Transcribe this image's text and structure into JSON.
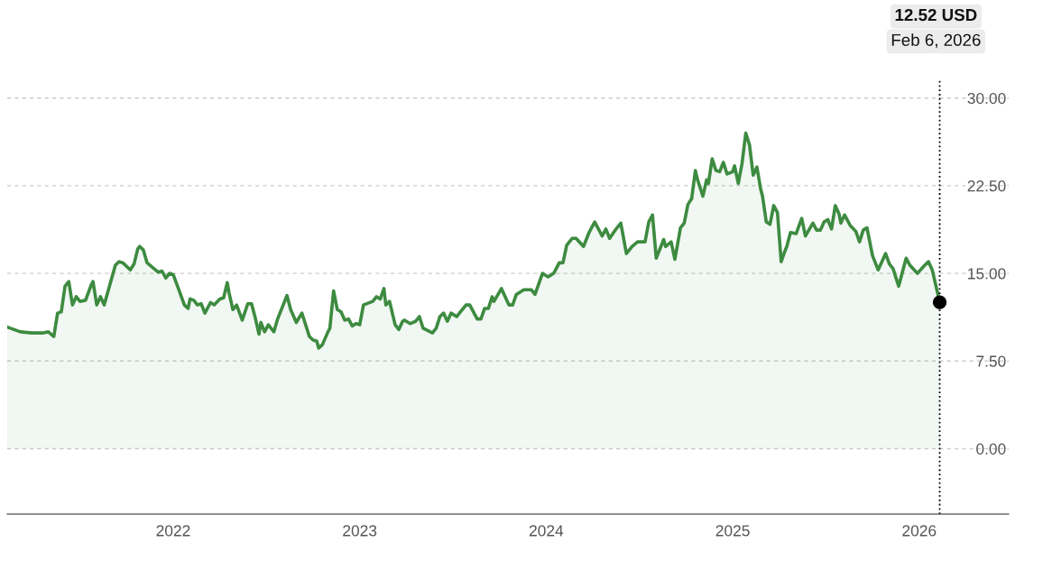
{
  "chart_data": {
    "type": "area",
    "x": [
      2021.11,
      2021.18,
      2021.24,
      2021.3,
      2021.33,
      2021.36,
      2021.38,
      2021.4,
      2021.42,
      2021.44,
      2021.46,
      2021.48,
      2021.5,
      2021.53,
      2021.56,
      2021.57,
      2021.59,
      2021.61,
      2021.63,
      2021.66,
      2021.69,
      2021.71,
      2021.73,
      2021.77,
      2021.79,
      2021.81,
      2021.82,
      2021.84,
      2021.86,
      2021.89,
      2021.92,
      2021.94,
      2021.96,
      2021.98,
      2022.0,
      2022.03,
      2022.06,
      2022.08,
      2022.09,
      2022.11,
      2022.13,
      2022.15,
      2022.17,
      2022.2,
      2022.22,
      2022.25,
      2022.27,
      2022.29,
      2022.3,
      2022.32,
      2022.34,
      2022.37,
      2022.4,
      2022.42,
      2022.44,
      2022.46,
      2022.47,
      2022.49,
      2022.51,
      2022.54,
      2022.56,
      2022.61,
      2022.63,
      2022.66,
      2022.69,
      2022.73,
      2022.75,
      2022.77,
      2022.78,
      2022.8,
      2022.83,
      2022.84,
      2022.86,
      2022.88,
      2022.9,
      2022.92,
      2022.94,
      2022.96,
      2022.98,
      2023.0,
      2023.02,
      2023.07,
      2023.09,
      2023.11,
      2023.13,
      2023.14,
      2023.16,
      2023.19,
      2023.21,
      2023.23,
      2023.24,
      2023.27,
      2023.3,
      2023.32,
      2023.34,
      2023.39,
      2023.41,
      2023.43,
      2023.45,
      2023.47,
      2023.49,
      2023.52,
      2023.57,
      2023.59,
      2023.63,
      2023.65,
      2023.67,
      2023.69,
      2023.71,
      2023.72,
      2023.76,
      2023.8,
      2023.82,
      2023.84,
      2023.88,
      2023.92,
      2023.94,
      2023.98,
      2024.01,
      2024.04,
      2024.07,
      2024.09,
      2024.11,
      2024.14,
      2024.16,
      2024.2,
      2024.23,
      2024.26,
      2024.29,
      2024.3,
      2024.32,
      2024.34,
      2024.37,
      2024.4,
      2024.43,
      2024.46,
      2024.49,
      2024.53,
      2024.55,
      2024.57,
      2024.59,
      2024.63,
      2024.64,
      2024.67,
      2024.69,
      2024.72,
      2024.74,
      2024.76,
      2024.78,
      2024.8,
      2024.81,
      2024.84,
      2024.86,
      2024.87,
      2024.89,
      2024.91,
      2024.93,
      2024.95,
      2024.97,
      2025.0,
      2025.01,
      2025.03,
      2025.05,
      2025.07,
      2025.09,
      2025.11,
      2025.13,
      2025.15,
      2025.16,
      2025.18,
      2025.2,
      2025.22,
      2025.24,
      2025.26,
      2025.28,
      2025.29,
      2025.31,
      2025.34,
      2025.37,
      2025.39,
      2025.43,
      2025.45,
      2025.47,
      2025.49,
      2025.51,
      2025.53,
      2025.55,
      2025.57,
      2025.58,
      2025.6,
      2025.63,
      2025.66,
      2025.68,
      2025.7,
      2025.72,
      2025.75,
      2025.78,
      2025.82,
      2025.84,
      2025.86,
      2025.89,
      2025.93,
      2025.95,
      2025.99,
      2026.03,
      2026.05,
      2026.07,
      2026.11
    ],
    "series": [
      {
        "color": "#3d8b40",
        "values": [
          10.4,
          10.0,
          9.9,
          9.9,
          10.0,
          9.6,
          11.6,
          11.7,
          13.9,
          14.3,
          12.3,
          13.0,
          12.6,
          12.7,
          14.0,
          14.3,
          12.3,
          13.0,
          12.3,
          14.0,
          15.7,
          16.0,
          15.9,
          15.3,
          15.8,
          17.1,
          17.3,
          17.0,
          15.9,
          15.5,
          15.1,
          15.2,
          14.6,
          15.0,
          14.9,
          13.6,
          12.3,
          12.0,
          12.8,
          12.7,
          12.3,
          12.4,
          11.6,
          12.5,
          12.3,
          12.8,
          12.9,
          14.2,
          13.3,
          11.9,
          12.3,
          11.0,
          12.4,
          12.4,
          11.2,
          9.8,
          10.8,
          10.0,
          10.6,
          10.0,
          11.1,
          13.1,
          11.9,
          10.8,
          11.6,
          9.6,
          9.3,
          9.2,
          8.6,
          8.9,
          10.0,
          10.3,
          13.5,
          11.9,
          11.7,
          11.0,
          11.1,
          10.5,
          10.7,
          10.6,
          12.3,
          12.6,
          13.0,
          12.8,
          13.7,
          12.3,
          12.6,
          10.6,
          10.2,
          10.9,
          11.0,
          10.7,
          10.9,
          11.3,
          10.3,
          9.9,
          10.3,
          11.3,
          11.6,
          10.9,
          11.6,
          11.3,
          12.3,
          12.3,
          11.1,
          11.1,
          12.0,
          12.0,
          13.0,
          12.6,
          13.7,
          12.3,
          12.3,
          13.2,
          13.6,
          13.6,
          13.2,
          15.0,
          14.7,
          15.0,
          15.9,
          15.9,
          17.4,
          18.0,
          18.0,
          17.3,
          18.5,
          19.4,
          18.5,
          18.2,
          18.8,
          18.0,
          18.7,
          19.3,
          16.7,
          17.3,
          17.7,
          17.7,
          19.4,
          20.0,
          16.3,
          17.9,
          17.3,
          17.7,
          16.2,
          18.9,
          19.3,
          20.9,
          21.4,
          23.8,
          23.1,
          21.6,
          23.0,
          22.7,
          24.8,
          23.8,
          23.7,
          24.5,
          23.5,
          23.7,
          24.2,
          22.7,
          24.4,
          27.0,
          26.0,
          23.4,
          24.1,
          22.2,
          21.6,
          19.4,
          19.2,
          20.8,
          20.2,
          16.0,
          16.9,
          17.3,
          18.5,
          18.4,
          19.7,
          18.2,
          19.3,
          18.7,
          18.7,
          19.4,
          19.6,
          18.8,
          20.8,
          20.1,
          19.3,
          20.0,
          19.1,
          18.6,
          17.7,
          18.7,
          18.9,
          16.5,
          15.3,
          16.7,
          15.8,
          15.4,
          13.9,
          16.3,
          15.7,
          15.0,
          15.7,
          16.0,
          15.3,
          12.52
        ]
      }
    ],
    "xlim": [
      2021.11,
      2026.48
    ],
    "xticks": [
      2022,
      2023,
      2024,
      2025,
      2026
    ],
    "ylim": [
      -5.6,
      31.6
    ],
    "yticks": [
      {
        "value": 0,
        "label": "0.00"
      },
      {
        "value": 7.5,
        "label": "7.50"
      },
      {
        "value": 15,
        "label": "15.00"
      },
      {
        "value": 22.5,
        "label": "22.50"
      },
      {
        "value": 30,
        "label": "30.00"
      }
    ],
    "grid": "y",
    "legend": false,
    "ref_lines": [
      {
        "axis": "x",
        "value": 2026.11,
        "color": "#000000",
        "line_style": "dotted"
      }
    ],
    "annotations": [
      "12.52 USD",
      "Feb 6, 2026"
    ]
  }
}
